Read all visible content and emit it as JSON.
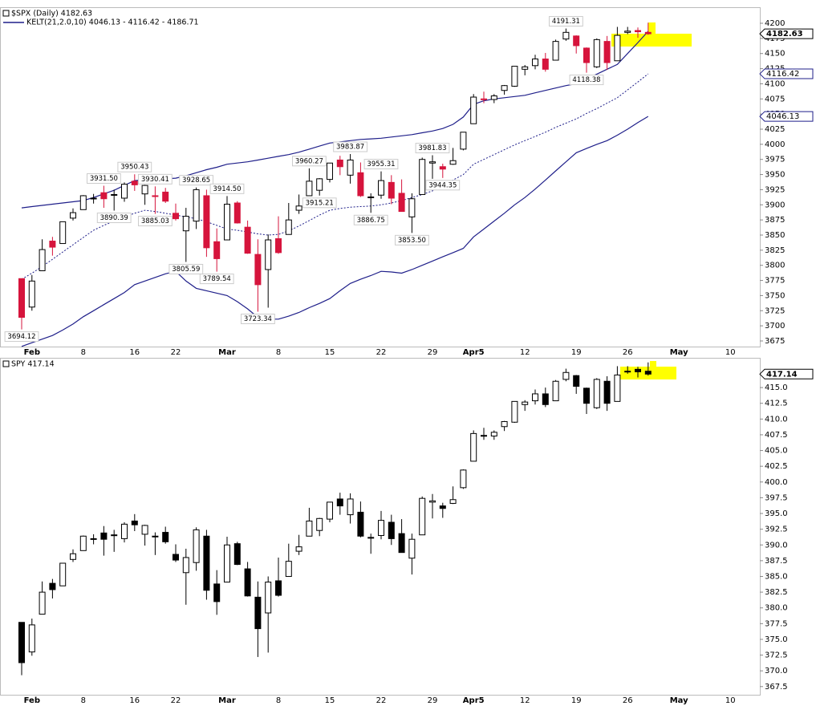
{
  "chart_data": [
    {
      "type": "candlestick",
      "title": "$SPX (Daily) 4182.63",
      "categories": [
        null,
        "Feb",
        null,
        null,
        null,
        null,
        "8",
        null,
        null,
        null,
        null,
        "16",
        null,
        null,
        null,
        "22",
        null,
        null,
        null,
        null,
        "Mar",
        null,
        null,
        null,
        null,
        "8",
        null,
        null,
        null,
        null,
        "15",
        null,
        null,
        null,
        null,
        "22",
        null,
        null,
        null,
        null,
        "29",
        null,
        null,
        null,
        "Apr5",
        null,
        null,
        null,
        null,
        "12",
        null,
        null,
        null,
        null,
        "19",
        null,
        null,
        null,
        null,
        "26",
        null,
        null,
        null,
        null,
        "May",
        null,
        null,
        null,
        null,
        "10",
        null,
        null,
        null
      ],
      "open": [
        3778,
        3731,
        3791,
        3840,
        3836,
        3878,
        3892,
        3910,
        3920,
        3916,
        3911,
        3939,
        3918,
        3915,
        3921,
        3886,
        3857,
        3873,
        3915,
        3839,
        3842,
        3903,
        3863,
        3818,
        3793,
        3844,
        3851,
        3891,
        3915,
        3924,
        3942,
        3974,
        3949,
        3953,
        3913,
        3916,
        3937,
        3919,
        3880,
        3917,
        3969,
        3963,
        3967,
        3992,
        4034,
        4075,
        4074,
        4089,
        4096,
        4124,
        4130,
        4141,
        4139,
        4174,
        4179,
        4159,
        4128,
        4170,
        4138,
        4185,
        4188,
        4185,
        null,
        null,
        null,
        null,
        null,
        null,
        null,
        null,
        null,
        null,
        null
      ],
      "high": [
        3778,
        3784,
        3843,
        3847,
        3872,
        3894,
        3916,
        3918,
        3931.5,
        3925,
        3937,
        3950.43,
        3933,
        3930.41,
        3928,
        3902,
        3895,
        3928.65,
        3925,
        3861,
        3914.5,
        3906,
        3874,
        3843,
        3851,
        3881,
        3903,
        3917,
        3960.27,
        3944,
        3969,
        3981,
        3983.87,
        3970,
        3919,
        3955.31,
        3949,
        3942,
        3919,
        3978,
        3981.83,
        3968,
        3994,
        4020,
        4083,
        4087,
        4083,
        4098,
        4129,
        4131,
        4148,
        4151,
        4173,
        4191.31,
        4180,
        4160,
        4175,
        4179,
        4194,
        4194,
        4193,
        4201,
        null,
        null,
        null,
        null,
        null,
        null,
        null,
        null,
        null,
        null,
        null
      ],
      "low": [
        3694.12,
        3725,
        3791,
        3816,
        3836,
        3874,
        3892,
        3902,
        3895,
        3890.39,
        3905,
        3923,
        3900,
        3885.03,
        3903,
        3874,
        3805.59,
        3860,
        3814,
        3789.54,
        3842,
        3869,
        3819,
        3723.34,
        3730,
        3819,
        3851,
        3885,
        3915,
        3915.21,
        3937,
        3949,
        3935,
        3913,
        3886.75,
        3910,
        3901,
        3889,
        3853.5,
        3917,
        3943,
        3944.35,
        3966,
        3990,
        4034,
        4068,
        4068,
        4082,
        4095,
        4114,
        4124,
        4120,
        4139,
        4171,
        4150,
        4118.38,
        4126,
        4123,
        4138,
        4182,
        4176,
        4181,
        null,
        null,
        null,
        null,
        null,
        null,
        null,
        null,
        null,
        null,
        null
      ],
      "close": [
        3714,
        3774,
        3826,
        3830,
        3872,
        3887,
        3915,
        3911,
        3910,
        3917,
        3934,
        3933,
        3932,
        3914,
        3906,
        3877,
        3881,
        3925,
        3829,
        3811,
        3901,
        3870,
        3820,
        3768,
        3842,
        3821,
        3875,
        3898,
        3939,
        3943,
        3969,
        3963,
        3974,
        3915,
        3913,
        3940,
        3911,
        3889,
        3910,
        3975,
        3971,
        3959,
        3973,
        4020,
        4078,
        4074,
        4080,
        4097,
        4129,
        4128,
        4141,
        4124,
        4170,
        4185,
        4163,
        4135,
        4173,
        4135,
        4180,
        4187,
        4186,
        4182.63,
        null,
        null,
        null,
        null,
        null,
        null,
        null,
        null,
        null,
        null,
        null
      ],
      "high_labels": [
        null,
        null,
        null,
        null,
        null,
        null,
        null,
        null,
        "3931.50",
        null,
        null,
        "3950.43",
        null,
        "3930.41",
        null,
        null,
        null,
        "3928.65",
        null,
        null,
        "3914.50",
        null,
        null,
        null,
        null,
        null,
        null,
        null,
        "3960.27",
        null,
        null,
        null,
        "3983.87",
        null,
        null,
        "3955.31",
        null,
        null,
        null,
        null,
        "3981.83",
        null,
        null,
        null,
        null,
        null,
        null,
        null,
        null,
        null,
        null,
        null,
        null,
        "4191.31",
        null,
        null,
        null,
        null,
        null,
        null,
        null,
        null,
        null,
        null,
        null,
        null,
        null,
        null,
        null,
        null,
        null,
        null,
        null
      ],
      "low_labels": [
        "3694.12",
        null,
        null,
        null,
        null,
        null,
        null,
        null,
        null,
        "3890.39",
        null,
        null,
        null,
        "3885.03",
        null,
        null,
        "3805.59",
        null,
        null,
        "3789.54",
        null,
        null,
        null,
        "3723.34",
        null,
        null,
        null,
        null,
        null,
        "3915.21",
        null,
        null,
        null,
        null,
        "3886.75",
        null,
        null,
        null,
        "3853.50",
        null,
        null,
        "3944.35",
        null,
        null,
        null,
        null,
        null,
        null,
        null,
        null,
        null,
        null,
        null,
        null,
        null,
        "4118.38",
        null,
        null,
        null,
        null,
        null,
        null,
        null,
        null,
        null,
        null,
        null,
        null,
        null,
        null,
        null,
        null,
        null
      ],
      "up_color": "#ffffff",
      "down_color": "#d6143c",
      "line_color": "#000000",
      "keltner": {
        "label": "KELT(21,2.0,10) 4046.13 - 4116.42 - 4186.71",
        "color": "#1f1f8a",
        "upper": [
          3895,
          3897,
          3899,
          3901,
          3903,
          3905,
          3907,
          3912,
          3918,
          3924,
          3932,
          3940,
          3941,
          3942,
          3943,
          3944,
          3948,
          3953,
          3958,
          3962,
          3967,
          3969,
          3971,
          3974,
          3977,
          3980,
          3983,
          3987,
          3992,
          3997,
          4002,
          4004,
          4006,
          4008,
          4009,
          4010,
          4012,
          4014,
          4016,
          4019,
          4022,
          4026,
          4033,
          4045,
          4066,
          4072,
          4075,
          4077,
          4079,
          4081,
          4085,
          4089,
          4093,
          4097,
          4100,
          4108,
          4116,
          4124,
          4132,
          4150,
          4168,
          4186.71,
          null,
          null,
          null,
          null,
          null,
          null,
          null,
          null,
          null,
          null,
          null
        ],
        "middle": [
          3777,
          3787,
          3798,
          3810,
          3822,
          3834,
          3846,
          3858,
          3866,
          3873,
          3880,
          3886,
          3891,
          3889,
          3886,
          3883,
          3880,
          3877,
          3872,
          3866,
          3860,
          3858,
          3855,
          3852,
          3850,
          3851,
          3857,
          3865,
          3874,
          3883,
          3891,
          3894,
          3896,
          3897,
          3898,
          3900,
          3903,
          3907,
          3912,
          3917,
          3923,
          3932,
          3941,
          3950,
          3967,
          3975,
          3983,
          3991,
          3999,
          4006,
          4013,
          4020,
          4028,
          4035,
          4042,
          4051,
          4059,
          4068,
          4077,
          4090,
          4103,
          4116.42,
          null,
          null,
          null,
          null,
          null,
          null,
          null,
          null,
          null,
          null,
          null
        ],
        "lower": [
          3666,
          3672,
          3678,
          3684,
          3693,
          3703,
          3715,
          3725,
          3735,
          3745,
          3755,
          3768,
          3774,
          3780,
          3786,
          3790,
          3774,
          3762,
          3758,
          3754,
          3750,
          3740,
          3728,
          3714,
          3711,
          3711,
          3716,
          3722,
          3730,
          3737,
          3745,
          3758,
          3770,
          3777,
          3783,
          3790,
          3789,
          3787,
          3793,
          3800,
          3807,
          3814,
          3821,
          3828,
          3847,
          3860,
          3873,
          3886,
          3900,
          3912,
          3926,
          3941,
          3956,
          3971,
          3986,
          3993,
          4000,
          4006,
          4015,
          4025,
          4036,
          4046.13,
          null,
          null,
          null,
          null,
          null,
          null,
          null,
          null,
          null,
          null,
          null
        ]
      },
      "ylim": [
        3665.7,
        4225.2
      ],
      "yticks": [
        3675,
        3700,
        3725,
        3750,
        3775,
        3800,
        3825,
        3850,
        3875,
        3900,
        3925,
        3950,
        3975,
        4000,
        4025,
        4050,
        4075,
        4100,
        4125,
        4150,
        4175,
        4200
      ]
    },
    {
      "type": "candlestick",
      "title": "SPY 417.14",
      "categories": [
        null,
        "Feb",
        null,
        null,
        null,
        null,
        "8",
        null,
        null,
        null,
        null,
        "16",
        null,
        null,
        null,
        "22",
        null,
        null,
        null,
        null,
        "Mar",
        null,
        null,
        null,
        null,
        "8",
        null,
        null,
        null,
        null,
        "15",
        null,
        null,
        null,
        null,
        "22",
        null,
        null,
        null,
        null,
        "29",
        null,
        null,
        null,
        "Apr5",
        null,
        null,
        null,
        null,
        "12",
        null,
        null,
        null,
        null,
        "19",
        null,
        null,
        null,
        null,
        "26",
        null,
        null,
        null,
        null,
        "May",
        null,
        null,
        null,
        null,
        "10",
        null,
        null,
        null
      ],
      "open": [
        377.7,
        373.0,
        379.0,
        383.9,
        383.5,
        387.7,
        389.1,
        390.9,
        391.9,
        391.5,
        391.0,
        393.8,
        391.7,
        391.4,
        392.0,
        388.5,
        385.6,
        387.2,
        391.4,
        383.8,
        384.1,
        390.2,
        386.2,
        381.7,
        379.2,
        384.3,
        385.0,
        389.0,
        391.4,
        392.3,
        394.1,
        397.3,
        394.8,
        395.2,
        391.2,
        391.5,
        393.6,
        391.8,
        387.9,
        391.6,
        396.8,
        396.2,
        396.6,
        399.1,
        403.3,
        407.4,
        407.3,
        408.8,
        409.5,
        412.3,
        412.9,
        414.0,
        412.9,
        416.3,
        416.9,
        414.9,
        411.8,
        416.0,
        412.8,
        417.5,
        417.9,
        417.6,
        null,
        null,
        null,
        null,
        null,
        null,
        null,
        null,
        null,
        null,
        null
      ],
      "high": [
        377.7,
        378.3,
        384.2,
        384.6,
        387.1,
        389.3,
        391.5,
        391.7,
        393.0,
        392.4,
        393.6,
        394.9,
        393.2,
        392.0,
        392.9,
        390.1,
        389.4,
        392.8,
        392.4,
        386.0,
        391.3,
        390.5,
        387.3,
        384.2,
        385.0,
        388.0,
        390.2,
        391.6,
        395.9,
        394.3,
        396.8,
        398.3,
        398.2,
        396.9,
        391.8,
        395.4,
        394.8,
        394.1,
        391.8,
        397.7,
        398.1,
        396.7,
        399.3,
        402.0,
        408.2,
        408.6,
        408.2,
        409.7,
        412.8,
        413.0,
        414.7,
        415.0,
        416.2,
        418.0,
        417.0,
        415.0,
        416.5,
        416.8,
        418.4,
        418.4,
        418.3,
        419.0,
        null,
        null,
        null,
        null,
        null,
        null,
        null,
        null,
        null,
        null,
        null
      ],
      "low": [
        369.3,
        372.4,
        379.0,
        381.5,
        383.5,
        387.3,
        389.1,
        390.1,
        388.3,
        388.9,
        390.4,
        392.2,
        389.9,
        388.4,
        390.2,
        387.3,
        380.5,
        385.9,
        381.3,
        378.9,
        384.1,
        386.8,
        381.8,
        372.2,
        372.9,
        381.8,
        385.0,
        388.4,
        391.4,
        391.4,
        393.6,
        394.8,
        393.4,
        391.2,
        388.6,
        390.9,
        390.0,
        388.8,
        385.3,
        391.6,
        394.2,
        394.3,
        396.5,
        398.9,
        403.3,
        406.7,
        406.7,
        408.1,
        409.4,
        411.3,
        412.3,
        411.9,
        412.9,
        416.0,
        414.0,
        410.8,
        411.6,
        411.3,
        412.8,
        417.2,
        416.6,
        416.9,
        null,
        null,
        null,
        null,
        null,
        null,
        null,
        null,
        null,
        null,
        null
      ],
      "close": [
        371.3,
        377.3,
        382.5,
        382.9,
        387.1,
        388.6,
        391.4,
        391.0,
        390.9,
        391.6,
        393.3,
        393.2,
        393.1,
        391.3,
        390.5,
        387.6,
        388.0,
        392.4,
        382.8,
        381.0,
        390.0,
        386.9,
        381.9,
        376.7,
        384.1,
        382.0,
        387.4,
        389.7,
        393.8,
        394.2,
        396.8,
        396.2,
        397.3,
        391.4,
        391.2,
        393.9,
        391.0,
        388.8,
        390.9,
        397.4,
        397.0,
        395.8,
        397.2,
        401.9,
        407.7,
        407.3,
        407.9,
        409.6,
        412.8,
        412.7,
        414.0,
        412.3,
        416.0,
        417.4,
        415.2,
        412.5,
        416.3,
        412.5,
        417.0,
        417.6,
        417.5,
        417.14,
        null,
        null,
        null,
        null,
        null,
        null,
        null,
        null,
        null,
        null,
        null
      ],
      "up_color": "#ffffff",
      "down_color": "#000000",
      "line_color": "#000000",
      "ylim": [
        366.2,
        419.6
      ],
      "yticks": [
        367.5,
        {
          "value": 370,
          "label": "370.0"
        },
        372.5,
        {
          "value": 375,
          "label": "375.0"
        },
        377.5,
        {
          "value": 380,
          "label": "380.0"
        },
        382.5,
        {
          "value": 385,
          "label": "385.0"
        },
        387.5,
        {
          "value": 390,
          "label": "390.0"
        },
        392.5,
        {
          "value": 395,
          "label": "395.0"
        },
        397.5,
        {
          "value": 400,
          "label": "400.0"
        },
        402.5,
        {
          "value": 405,
          "label": "405.0"
        },
        407.5,
        {
          "value": 410,
          "label": "410.0"
        },
        412.5,
        {
          "value": 415,
          "label": "415.0"
        }
      ]
    }
  ]
}
